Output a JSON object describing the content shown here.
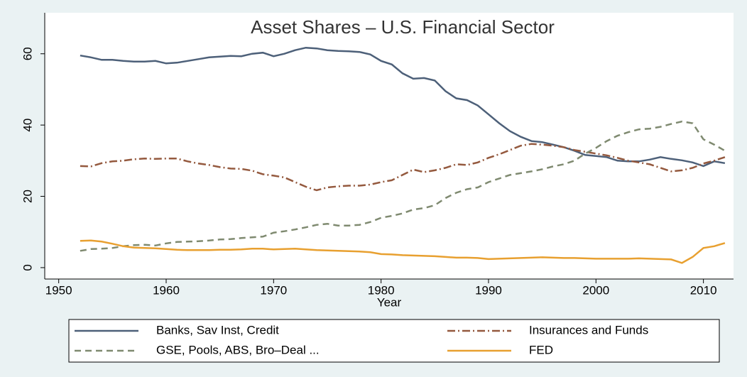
{
  "chart_data": {
    "type": "line",
    "title": "Asset Shares – U.S. Financial Sector",
    "x_label": "Year",
    "x": [
      1952,
      1953,
      1954,
      1955,
      1956,
      1957,
      1958,
      1959,
      1960,
      1961,
      1962,
      1963,
      1964,
      1965,
      1966,
      1967,
      1968,
      1969,
      1970,
      1971,
      1972,
      1973,
      1974,
      1975,
      1976,
      1977,
      1978,
      1979,
      1980,
      1981,
      1982,
      1983,
      1984,
      1985,
      1986,
      1987,
      1988,
      1989,
      1990,
      1991,
      1992,
      1993,
      1994,
      1995,
      1996,
      1997,
      1998,
      1999,
      2000,
      2001,
      2002,
      2003,
      2004,
      2005,
      2006,
      2007,
      2008,
      2009,
      2010,
      2011,
      2012
    ],
    "series": [
      {
        "name": "Banks, Sav Inst, Credit",
        "color": "#4d6079",
        "dash": "solid",
        "values": [
          59.5,
          59,
          58.3,
          58.3,
          58,
          57.8,
          57.8,
          58,
          57.3,
          57.5,
          58,
          58.5,
          59,
          59.2,
          59.4,
          59.3,
          60,
          60.3,
          59.3,
          60,
          61,
          61.7,
          61.5,
          61,
          60.8,
          60.7,
          60.5,
          59.8,
          58,
          57,
          54.5,
          53,
          53.2,
          52.5,
          49.5,
          47.5,
          47,
          45.5,
          43,
          40.5,
          38.3,
          36.7,
          35.5,
          35.2,
          34.5,
          33.8,
          32.8,
          31.6,
          31.3,
          31,
          30,
          29.8,
          29.8,
          30.3,
          31,
          30.5,
          30.1,
          29.5,
          28.5,
          29.8,
          29.3
        ]
      },
      {
        "name": "Insurances and Funds",
        "color": "#94593e",
        "dash": "dashdot",
        "values": [
          28.5,
          28.4,
          29.3,
          29.8,
          30,
          30.4,
          30.6,
          30.5,
          30.6,
          30.6,
          29.8,
          29.2,
          28.8,
          28.2,
          27.8,
          27.7,
          27.2,
          26.2,
          25.8,
          25.3,
          24,
          22.7,
          21.7,
          22.5,
          22.8,
          23,
          23,
          23.3,
          24,
          24.5,
          26,
          27.5,
          26.8,
          27.3,
          28,
          29,
          28.8,
          29.5,
          30.8,
          31.8,
          33,
          34.2,
          34.7,
          34.5,
          34.2,
          33.8,
          33,
          32.5,
          32,
          31.5,
          30.8,
          30,
          29.5,
          29,
          28,
          27,
          27.3,
          28,
          29.2,
          30,
          31
        ]
      },
      {
        "name": "GSE, Pools, ABS, Bro–Deal ...",
        "color": "#7f8a70",
        "dash": "dash",
        "values": [
          4.7,
          5.2,
          5.3,
          5.5,
          6,
          6.3,
          6.4,
          6.2,
          6.8,
          7.2,
          7.3,
          7.4,
          7.6,
          7.9,
          8,
          8.3,
          8.5,
          8.7,
          9.8,
          10.2,
          10.7,
          11.3,
          12,
          12.3,
          11.8,
          11.8,
          12,
          12.8,
          14,
          14.5,
          15.2,
          16.3,
          16.7,
          17.5,
          19.5,
          21,
          22,
          22.5,
          24,
          25,
          26,
          26.5,
          27,
          27.6,
          28.4,
          29,
          30,
          32,
          33.6,
          35.5,
          37,
          38,
          38.8,
          39,
          39.5,
          40.3,
          41,
          40.5,
          36,
          34.5,
          32.8
        ]
      },
      {
        "name": "FED",
        "color": "#e8a030",
        "dash": "solid",
        "values": [
          7.5,
          7.6,
          7.3,
          6.7,
          6,
          5.6,
          5.5,
          5.4,
          5.2,
          5,
          4.9,
          4.9,
          4.9,
          5,
          5,
          5.1,
          5.3,
          5.3,
          5.1,
          5.2,
          5.3,
          5.1,
          4.9,
          4.8,
          4.7,
          4.6,
          4.5,
          4.3,
          3.8,
          3.7,
          3.5,
          3.4,
          3.3,
          3.2,
          3,
          2.8,
          2.8,
          2.7,
          2.4,
          2.5,
          2.6,
          2.7,
          2.8,
          2.9,
          2.8,
          2.7,
          2.7,
          2.6,
          2.5,
          2.5,
          2.5,
          2.5,
          2.6,
          2.5,
          2.4,
          2.3,
          1.3,
          3,
          5.5,
          6,
          6.9
        ]
      }
    ],
    "xlim": [
      1948.7,
      2012.8
    ],
    "xticks": [
      1950,
      1960,
      1970,
      1980,
      1990,
      2000,
      2010
    ],
    "ylim": [
      -3.2,
      71.5
    ],
    "yticks": [
      0,
      20,
      40,
      60
    ],
    "grid": false
  }
}
